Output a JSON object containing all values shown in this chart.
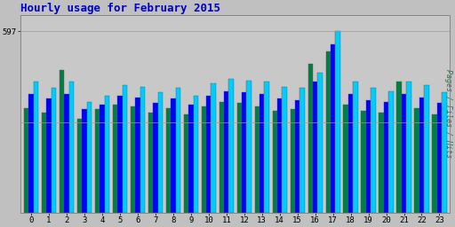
{
  "title": "Hourly usage for February 2015",
  "title_color": "#0000cc",
  "title_fontsize": 9,
  "ylabel_right": "Pages / Files / Hits",
  "ylabel_right_color": "#008844",
  "ytick_label": "597",
  "ytick_value": 597,
  "ymax": 650,
  "background_color": "#c0c0c0",
  "plot_bg_color": "#c8c8c8",
  "hours": [
    0,
    1,
    2,
    3,
    4,
    5,
    6,
    7,
    8,
    9,
    10,
    11,
    12,
    13,
    14,
    15,
    16,
    17,
    18,
    19,
    20,
    21,
    22,
    23
  ],
  "hits": [
    430,
    410,
    430,
    365,
    385,
    420,
    415,
    395,
    410,
    385,
    425,
    440,
    435,
    430,
    415,
    410,
    460,
    597,
    430,
    410,
    400,
    430,
    420,
    395
  ],
  "files": [
    390,
    375,
    390,
    340,
    355,
    385,
    380,
    360,
    375,
    355,
    385,
    400,
    395,
    390,
    375,
    370,
    430,
    555,
    390,
    370,
    365,
    390,
    380,
    360
  ],
  "pages": [
    345,
    330,
    470,
    310,
    340,
    355,
    350,
    330,
    345,
    325,
    350,
    365,
    360,
    350,
    335,
    340,
    490,
    530,
    355,
    335,
    330,
    430,
    345,
    325
  ],
  "hits_color": "#00ccff",
  "files_color": "#0000ff",
  "pages_color": "#008040",
  "bar_edge_color": "#555555",
  "bar_width": 0.27,
  "grid_color": "#999999",
  "tick_label_color": "#000000",
  "tick_fontsize": 6.5,
  "font_family": "monospace"
}
